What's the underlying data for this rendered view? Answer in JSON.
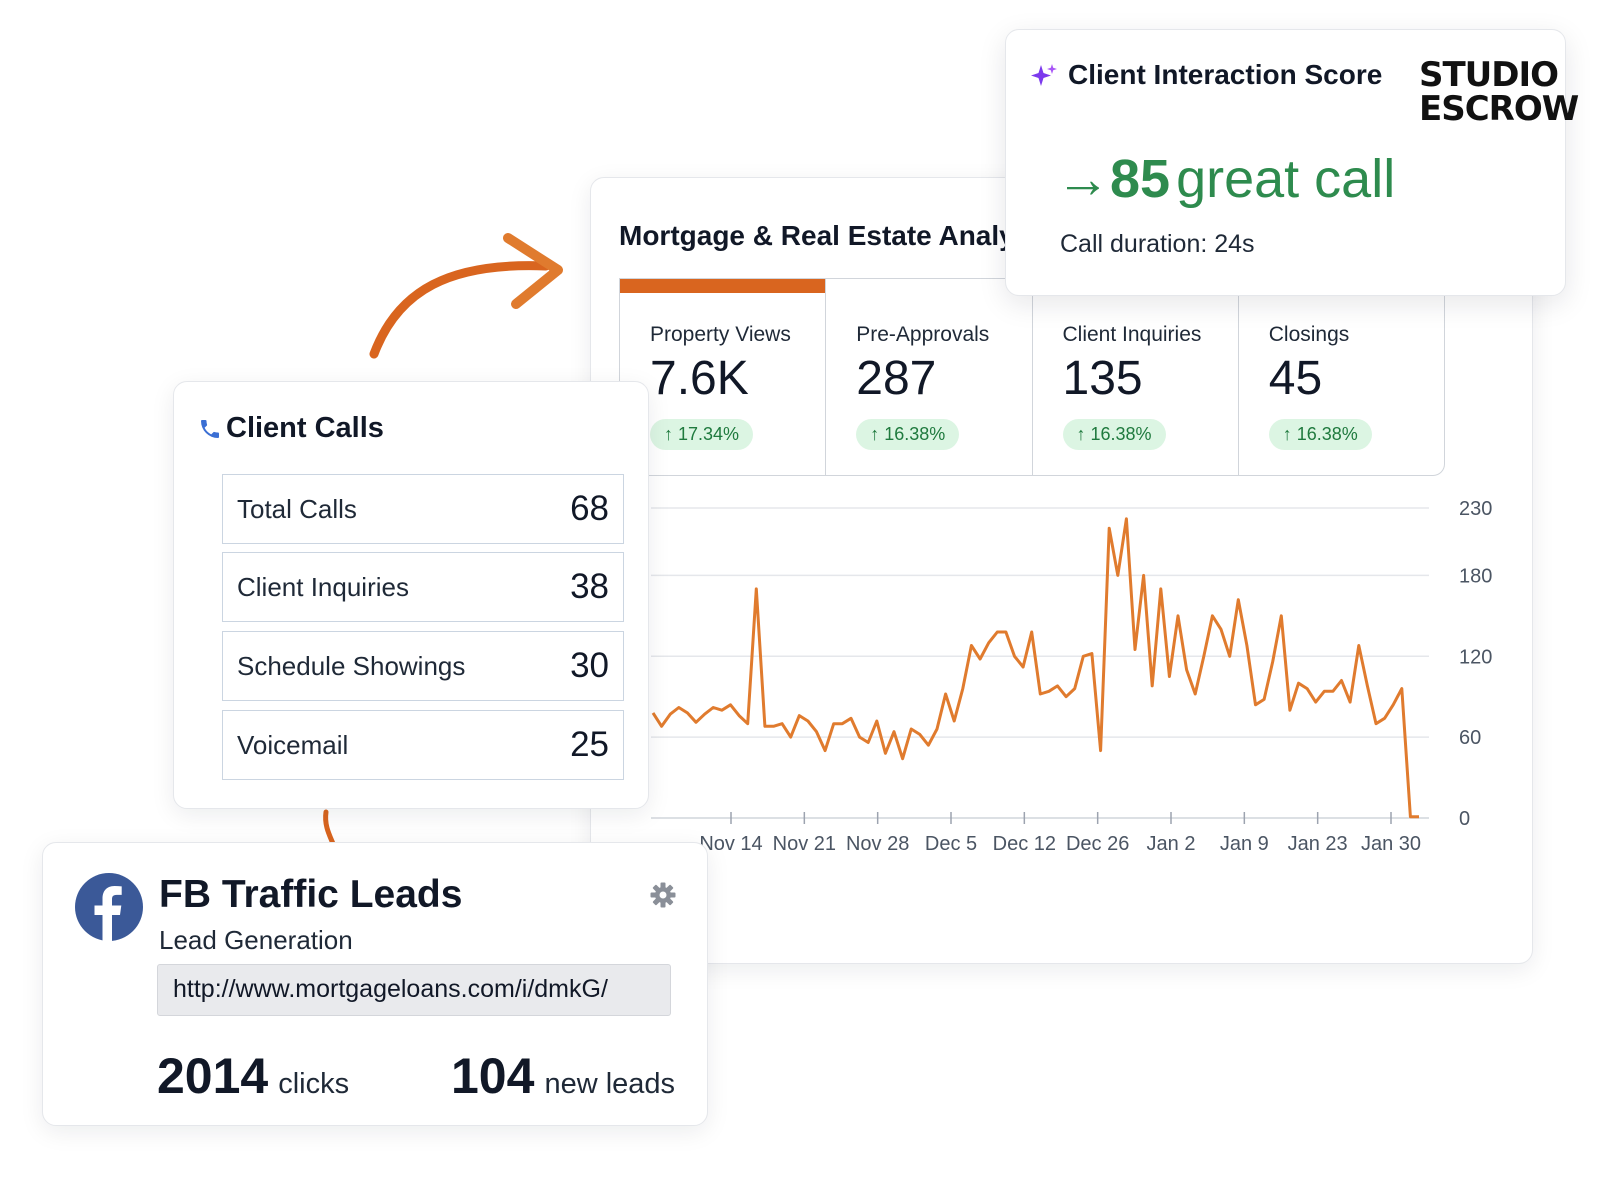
{
  "colors": {
    "accent_orange": "#d9651f",
    "score_green": "#2e8b4e",
    "badge_bg": "#dcf5e3",
    "badge_text": "#1f7a3e",
    "facebook_blue": "#3b5998",
    "sparkle_purple": "#7c3aed"
  },
  "score_card": {
    "title": "Client Interaction Score",
    "brand": "STUDIO\nESCROW",
    "arrow": "→",
    "score": "85",
    "score_text": "great call",
    "duration": "Call duration: 24s"
  },
  "analytics": {
    "title": "Mortgage & Real Estate Analytics",
    "kpis": [
      {
        "label": "Property Views",
        "value": "7.6K",
        "change": "↑ 17.34%"
      },
      {
        "label": "Pre-Approvals",
        "value": "287",
        "change": "↑ 16.38%"
      },
      {
        "label": "Client Inquiries",
        "value": "135",
        "change": "↑ 16.38%"
      },
      {
        "label": "Closings",
        "value": "45",
        "change": "↑ 16.38%"
      }
    ]
  },
  "chart_data": {
    "type": "line",
    "x_tick_labels": [
      "Nov 14",
      "Nov 21",
      "Nov 28",
      "Dec 5",
      "Dec 12",
      "Dec 26",
      "Jan 2",
      "Jan 9",
      "Jan 23",
      "Jan 30"
    ],
    "y_ticks": [
      0,
      60,
      120,
      180,
      230
    ],
    "ylim": [
      0,
      230
    ],
    "grid": true,
    "series": [
      {
        "color": "#e07b2e",
        "values": [
          78,
          68,
          77,
          82,
          78,
          71,
          77,
          82,
          80,
          84,
          76,
          70,
          170,
          68,
          68,
          70,
          60,
          76,
          72,
          64,
          50,
          70,
          70,
          74,
          60,
          56,
          72,
          48,
          64,
          44,
          66,
          62,
          54,
          66,
          92,
          72,
          96,
          128,
          118,
          130,
          138,
          138,
          120,
          112,
          138,
          92,
          94,
          98,
          90,
          96,
          120,
          122,
          50,
          215,
          180,
          222,
          125,
          180,
          98,
          170,
          105,
          150,
          110,
          92,
          120,
          150,
          140,
          120,
          162,
          128,
          84,
          88,
          116,
          150,
          80,
          100,
          96,
          86,
          94,
          94,
          102,
          86,
          128,
          98,
          70,
          74,
          84,
          96,
          1,
          1
        ]
      }
    ]
  },
  "client_calls": {
    "title": "Client Calls",
    "rows": [
      {
        "label": "Total Calls",
        "value": "68"
      },
      {
        "label": "Client Inquiries",
        "value": "38"
      },
      {
        "label": "Schedule Showings",
        "value": "30"
      },
      {
        "label": "Voicemail",
        "value": "25"
      }
    ]
  },
  "fb_card": {
    "title": "FB Traffic Leads",
    "subtitle": "Lead Generation",
    "url": "http://www.mortgageloans.com/i/dmkG/",
    "clicks": "2014",
    "clicks_label": "clicks",
    "leads": "104",
    "leads_label": "new leads"
  }
}
